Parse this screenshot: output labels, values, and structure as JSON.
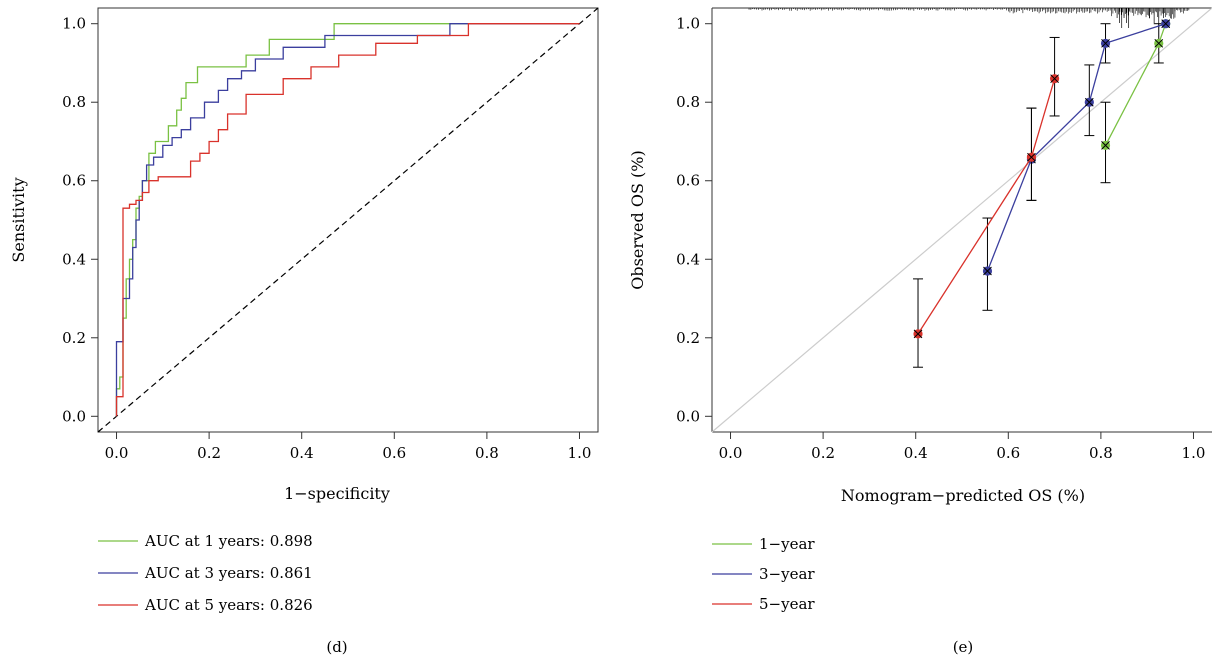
{
  "colors": {
    "year1": "#7ac143",
    "year3": "#3b3f9e",
    "year5": "#d9322b",
    "axis": "#333333",
    "diag": "#cccccc"
  },
  "panels": {
    "d": {
      "label": "(d)"
    },
    "e": {
      "label": "(e)"
    }
  },
  "chart_data": [
    {
      "type": "line",
      "panel": "d",
      "xlabel": "1−specificity",
      "ylabel": "Sensitivity",
      "xlim": [
        -0.04,
        1.04
      ],
      "ylim": [
        -0.04,
        1.04
      ],
      "xticks": [
        "0.0",
        "0.2",
        "0.4",
        "0.6",
        "0.8",
        "1.0"
      ],
      "yticks": [
        "0.0",
        "0.2",
        "0.4",
        "0.6",
        "0.8",
        "1.0"
      ],
      "grid": false,
      "reference_line": "dashed diagonal",
      "legend": [
        "AUC at 1 years: 0.898",
        "AUC at 3 years: 0.861",
        "AUC at 5 years: 0.826"
      ],
      "legend_position": "below",
      "series": [
        {
          "name": "AUC at 1 years: 0.898",
          "color_key": "year1",
          "x": [
            0.0,
            0.0,
            0.007,
            0.007,
            0.014,
            0.014,
            0.021,
            0.021,
            0.028,
            0.028,
            0.035,
            0.035,
            0.042,
            0.042,
            0.049,
            0.049,
            0.056,
            0.056,
            0.07,
            0.07,
            0.084,
            0.084,
            0.112,
            0.112,
            0.13,
            0.13,
            0.14,
            0.14,
            0.15,
            0.15,
            0.175,
            0.175,
            0.28,
            0.28,
            0.33,
            0.33,
            0.42,
            0.42,
            0.47,
            0.47,
            1.0
          ],
          "y": [
            0.0,
            0.07,
            0.07,
            0.1,
            0.1,
            0.25,
            0.25,
            0.35,
            0.35,
            0.4,
            0.4,
            0.45,
            0.45,
            0.53,
            0.53,
            0.56,
            0.56,
            0.6,
            0.6,
            0.67,
            0.67,
            0.7,
            0.7,
            0.74,
            0.74,
            0.78,
            0.78,
            0.81,
            0.81,
            0.85,
            0.85,
            0.89,
            0.89,
            0.92,
            0.92,
            0.96,
            0.96,
            0.96,
            0.96,
            1.0,
            1.0
          ]
        },
        {
          "name": "AUC at 3 years: 0.861",
          "color_key": "year3",
          "x": [
            0.0,
            0.0,
            0.014,
            0.014,
            0.028,
            0.028,
            0.035,
            0.035,
            0.042,
            0.042,
            0.049,
            0.049,
            0.056,
            0.056,
            0.065,
            0.065,
            0.08,
            0.08,
            0.1,
            0.1,
            0.12,
            0.12,
            0.14,
            0.14,
            0.16,
            0.16,
            0.19,
            0.19,
            0.22,
            0.22,
            0.24,
            0.24,
            0.27,
            0.27,
            0.3,
            0.3,
            0.36,
            0.36,
            0.45,
            0.45,
            0.72,
            0.72,
            1.0
          ],
          "y": [
            0.0,
            0.19,
            0.19,
            0.3,
            0.3,
            0.35,
            0.35,
            0.43,
            0.43,
            0.5,
            0.5,
            0.55,
            0.55,
            0.6,
            0.6,
            0.64,
            0.64,
            0.66,
            0.66,
            0.69,
            0.69,
            0.71,
            0.71,
            0.73,
            0.73,
            0.76,
            0.76,
            0.8,
            0.8,
            0.83,
            0.83,
            0.86,
            0.86,
            0.88,
            0.88,
            0.91,
            0.91,
            0.94,
            0.94,
            0.97,
            0.97,
            1.0,
            1.0
          ]
        },
        {
          "name": "AUC at 5 years: 0.826",
          "color_key": "year5",
          "x": [
            0.0,
            0.0,
            0.014,
            0.014,
            0.028,
            0.028,
            0.042,
            0.042,
            0.056,
            0.056,
            0.07,
            0.07,
            0.09,
            0.09,
            0.16,
            0.16,
            0.18,
            0.18,
            0.2,
            0.2,
            0.22,
            0.22,
            0.24,
            0.24,
            0.28,
            0.28,
            0.36,
            0.36,
            0.42,
            0.42,
            0.48,
            0.48,
            0.56,
            0.56,
            0.65,
            0.65,
            0.76,
            0.76,
            0.86,
            0.86,
            1.0
          ],
          "y": [
            0.0,
            0.05,
            0.05,
            0.53,
            0.53,
            0.54,
            0.54,
            0.55,
            0.55,
            0.57,
            0.57,
            0.6,
            0.6,
            0.61,
            0.61,
            0.65,
            0.65,
            0.67,
            0.67,
            0.7,
            0.7,
            0.73,
            0.73,
            0.77,
            0.77,
            0.82,
            0.82,
            0.86,
            0.86,
            0.89,
            0.89,
            0.92,
            0.92,
            0.95,
            0.95,
            0.97,
            0.97,
            1.0,
            1.0,
            1.0,
            1.0
          ]
        }
      ]
    },
    {
      "type": "line",
      "panel": "e",
      "xlabel": "Nomogram−predicted OS (%)",
      "ylabel": "Observed OS (%)",
      "xlim": [
        -0.04,
        1.04
      ],
      "ylim": [
        -0.04,
        1.04
      ],
      "xticks": [
        "0.0",
        "0.2",
        "0.4",
        "0.6",
        "0.8",
        "1.0"
      ],
      "yticks": [
        "0.0",
        "0.2",
        "0.4",
        "0.6",
        "0.8",
        "1.0"
      ],
      "grid": false,
      "reference_line": "ideal diagonal (light gray)",
      "legend": [
        "1−year",
        "3−year",
        "5−year"
      ],
      "legend_position": "below",
      "series": [
        {
          "name": "1−year",
          "color_key": "year1",
          "points": [
            {
              "x": 0.81,
              "y": 0.69,
              "lo": 0.595,
              "hi": 0.8
            },
            {
              "x": 0.925,
              "y": 0.95,
              "lo": 0.9,
              "hi": 1.0
            },
            {
              "x": 0.94,
              "y": 1.0,
              "lo": 1.0,
              "hi": 1.0
            }
          ]
        },
        {
          "name": "3−year",
          "color_key": "year3",
          "points": [
            {
              "x": 0.555,
              "y": 0.37,
              "lo": 0.27,
              "hi": 0.505
            },
            {
              "x": 0.65,
              "y": 0.655,
              "lo": 0.55,
              "hi": 0.785
            },
            {
              "x": 0.775,
              "y": 0.8,
              "lo": 0.715,
              "hi": 0.895
            },
            {
              "x": 0.81,
              "y": 0.95,
              "lo": 0.9,
              "hi": 1.0
            },
            {
              "x": 0.94,
              "y": 1.0,
              "lo": 1.0,
              "hi": 1.0
            }
          ]
        },
        {
          "name": "5−year",
          "color_key": "year5",
          "points": [
            {
              "x": 0.405,
              "y": 0.21,
              "lo": 0.125,
              "hi": 0.35
            },
            {
              "x": 0.65,
              "y": 0.66,
              "lo": 0.55,
              "hi": 0.785
            },
            {
              "x": 0.7,
              "y": 0.86,
              "lo": 0.765,
              "hi": 0.965
            }
          ]
        }
      ]
    }
  ]
}
